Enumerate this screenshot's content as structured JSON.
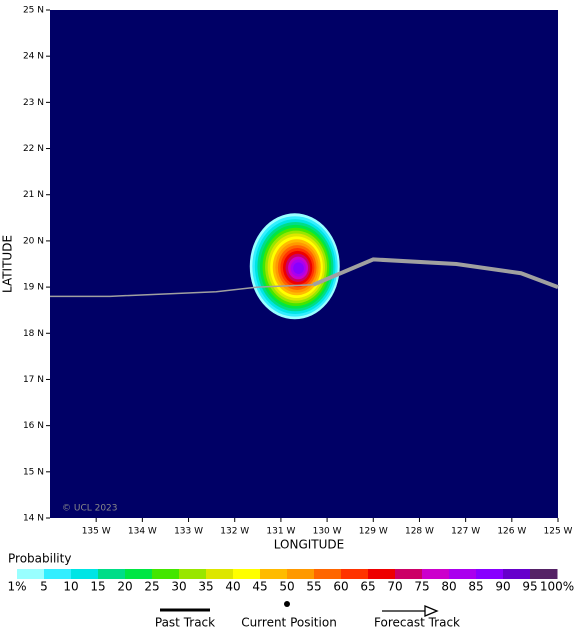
{
  "chart_data": {
    "type": "track-map",
    "xlabel": "LONGITUDE",
    "ylabel": "LATITUDE",
    "watermark": "© UCL 2023",
    "background": "#000066",
    "xlim": [
      -136,
      -125
    ],
    "ylim": [
      14,
      25
    ],
    "xticks": [
      {
        "value": -135,
        "label": "135 W"
      },
      {
        "value": -134,
        "label": "134 W"
      },
      {
        "value": -133,
        "label": "133 W"
      },
      {
        "value": -132,
        "label": "132 W"
      },
      {
        "value": -131,
        "label": "131 W"
      },
      {
        "value": -130,
        "label": "130 W"
      },
      {
        "value": -129,
        "label": "129 W"
      },
      {
        "value": -128,
        "label": "128 W"
      },
      {
        "value": -127,
        "label": "127 W"
      },
      {
        "value": -126,
        "label": "126 W"
      },
      {
        "value": -125,
        "label": "125 W"
      }
    ],
    "yticks": [
      {
        "value": 14,
        "label": "14 N"
      },
      {
        "value": 15,
        "label": "15 N"
      },
      {
        "value": 16,
        "label": "16 N"
      },
      {
        "value": 17,
        "label": "17 N"
      },
      {
        "value": 18,
        "label": "18 N"
      },
      {
        "value": 19,
        "label": "19 N"
      },
      {
        "value": 20,
        "label": "20 N"
      },
      {
        "value": 21,
        "label": "21 N"
      },
      {
        "value": 22,
        "label": "22 N"
      },
      {
        "value": 23,
        "label": "23 N"
      },
      {
        "value": 24,
        "label": "24 N"
      },
      {
        "value": 25,
        "label": "25 N"
      }
    ],
    "track_color": "#a0a0a0",
    "past_track": {
      "x": [
        -136,
        -134.7,
        -132.4,
        -131.5,
        -130.3
      ],
      "y": [
        18.8,
        18.8,
        18.9,
        19.0,
        19.05
      ]
    },
    "forecast_track": {
      "x": [
        -130.3,
        -129,
        -127.2,
        -125.8,
        -125
      ],
      "y": [
        19.05,
        19.6,
        19.5,
        19.3,
        19.0
      ]
    },
    "probability": {
      "x": -130.7,
      "y": 19.45
    },
    "colorbar": {
      "title": "Probability",
      "colors": [
        "#99ffff",
        "#33eeff",
        "#00e5e5",
        "#00dd88",
        "#00e644",
        "#44e600",
        "#99e600",
        "#dde600",
        "#ffff00",
        "#ffbb00",
        "#ff9900",
        "#ff6600",
        "#ff3300",
        "#ee0000",
        "#cc0066",
        "#cc00cc",
        "#aa00ee",
        "#8800ff",
        "#6600cc",
        "#552266"
      ],
      "ticks": [
        {
          "value": 1,
          "label": "1%"
        },
        5,
        10,
        15,
        20,
        25,
        30,
        35,
        40,
        45,
        50,
        55,
        60,
        65,
        70,
        75,
        80,
        85,
        90,
        95,
        {
          "value": 100,
          "label": "100%"
        }
      ]
    },
    "legend": [
      "Past Track",
      "Current Position",
      "Forecast Track"
    ]
  }
}
